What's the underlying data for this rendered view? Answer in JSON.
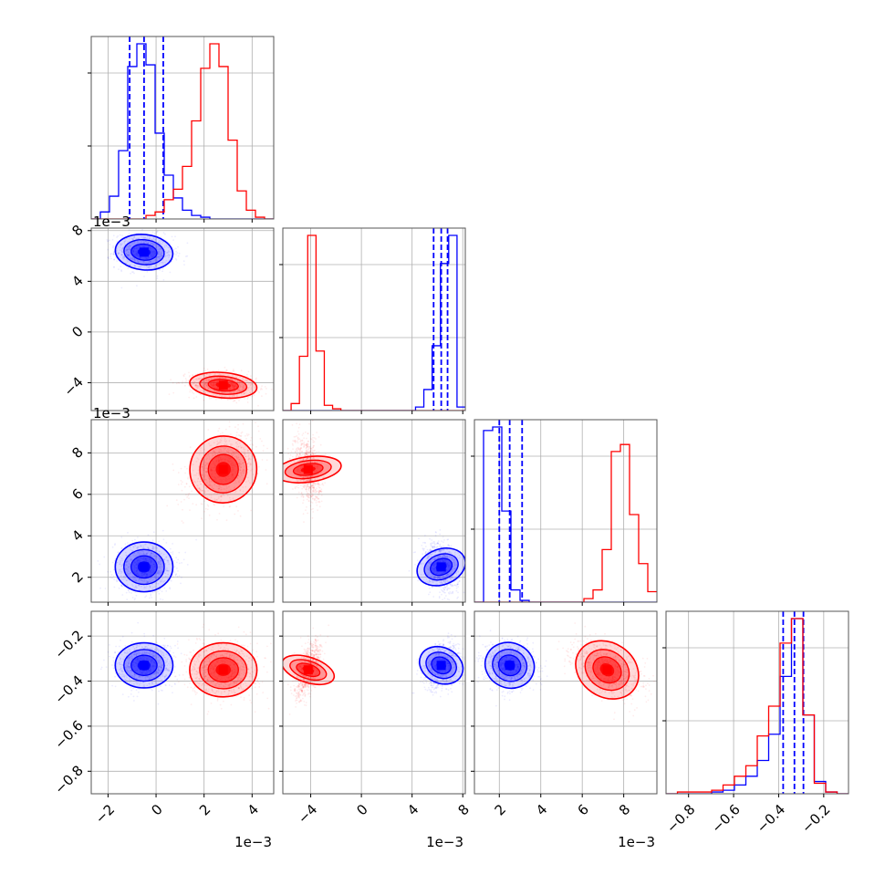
{
  "chart_data": {
    "type": "corner",
    "parameters": 4,
    "colors": {
      "blue": "#0000ff",
      "red": "#ff0000",
      "grid": "#b0b0b0",
      "frame": "#555555"
    },
    "scatter_alpha": 0.08,
    "sci_label": "1e−3",
    "grid": true,
    "series": [
      {
        "color": "blue",
        "params": [
          {
            "mean": -0.0005,
            "sd": 0.0006
          },
          {
            "mean": 0.0063,
            "sd": 0.0007
          },
          {
            "mean": 0.0025,
            "sd": 0.0006
          },
          {
            "mean": -0.33,
            "sd": 0.05
          }
        ],
        "quantiles": [
          [
            -0.0011,
            -0.0005,
            0.0003
          ],
          [
            0.0057,
            0.0063,
            0.0068
          ],
          [
            0.002,
            0.0025,
            0.0031
          ],
          [
            -0.38,
            -0.33,
            -0.29
          ]
        ],
        "hist": [
          [
            0,
            0.04,
            0.13,
            0.39,
            0.87,
            1.0,
            0.88,
            0.49,
            0.25,
            0.12,
            0.05,
            0.02,
            0.01,
            0,
            0,
            0,
            0,
            0,
            0,
            0
          ],
          [
            0,
            0,
            0,
            0,
            0,
            0,
            0,
            0,
            0,
            0,
            0,
            0,
            0,
            0,
            0,
            0,
            0.02,
            0.12,
            0.37,
            0.84,
            1.0,
            0.02
          ],
          [
            0,
            0.98,
            1.0,
            0.52,
            0.07,
            0.01,
            0,
            0,
            0,
            0,
            0,
            0,
            0,
            0,
            0,
            0,
            0,
            0,
            0,
            0
          ],
          [
            0,
            0,
            0,
            0,
            0.01,
            0.02,
            0.05,
            0.1,
            0.19,
            0.34,
            0.67,
            1.0,
            0.45,
            0.07,
            0.01,
            0
          ]
        ]
      },
      {
        "color": "red",
        "params": [
          {
            "mean": 0.0028,
            "sd": 0.0007
          },
          {
            "mean": -0.0042,
            "sd": 0.0005
          },
          {
            "mean": 0.0072,
            "sd": 0.0008
          },
          {
            "mean": -0.35,
            "sd": 0.06
          }
        ],
        "quantiles": null,
        "hist": [
          [
            0,
            0,
            0,
            0,
            0,
            0,
            0.02,
            0.04,
            0.11,
            0.17,
            0.3,
            0.56,
            0.86,
            1.0,
            0.87,
            0.45,
            0.16,
            0.05,
            0.01,
            0
          ],
          [
            0,
            0.04,
            0.31,
            1.0,
            0.34,
            0.03,
            0.01,
            0,
            0,
            0,
            0,
            0,
            0,
            0,
            0,
            0,
            0,
            0,
            0,
            0,
            0,
            0
          ],
          [
            0,
            0,
            0,
            0,
            0,
            0,
            0,
            0,
            0,
            0,
            0,
            0,
            0.02,
            0.07,
            0.3,
            0.86,
            0.9,
            0.5,
            0.22,
            0.06
          ],
          [
            0,
            0.01,
            0.01,
            0.01,
            0.02,
            0.05,
            0.1,
            0.16,
            0.33,
            0.5,
            0.86,
            1.0,
            0.45,
            0.06,
            0.01,
            0
          ]
        ]
      }
    ],
    "axes": [
      {
        "range": [
          -0.0027,
          0.0049
        ],
        "ticks": [
          -0.002,
          0,
          0.002,
          0.004
        ],
        "tick_labels": [
          "−2",
          "0",
          "2",
          "4"
        ]
      },
      {
        "range": [
          -0.0062,
          0.0082
        ],
        "ticks": [
          -0.004,
          0,
          0.004,
          0.008
        ],
        "tick_labels": [
          "−4",
          "0",
          "4",
          "8"
        ]
      },
      {
        "range": [
          0.0008,
          0.0096
        ],
        "ticks": [
          0.002,
          0.004,
          0.006,
          0.008
        ],
        "tick_labels": [
          "2",
          "4",
          "6",
          "8"
        ]
      },
      {
        "range": [
          -0.9,
          -0.09
        ],
        "ticks": [
          -0.8,
          -0.6,
          -0.4,
          -0.2
        ],
        "tick_labels": [
          "−0.8",
          "−0.6",
          "−0.4",
          "−0.2"
        ]
      }
    ],
    "sci_labels": {
      "x": [
        {
          "col": 0,
          "text": "1e−3"
        },
        {
          "col": 1,
          "text": "1e−3"
        },
        {
          "col": 2,
          "text": "1e−3"
        }
      ],
      "y": [
        {
          "row": 1,
          "text": "1e−3"
        },
        {
          "row": 2,
          "text": "1e−3"
        }
      ]
    }
  }
}
